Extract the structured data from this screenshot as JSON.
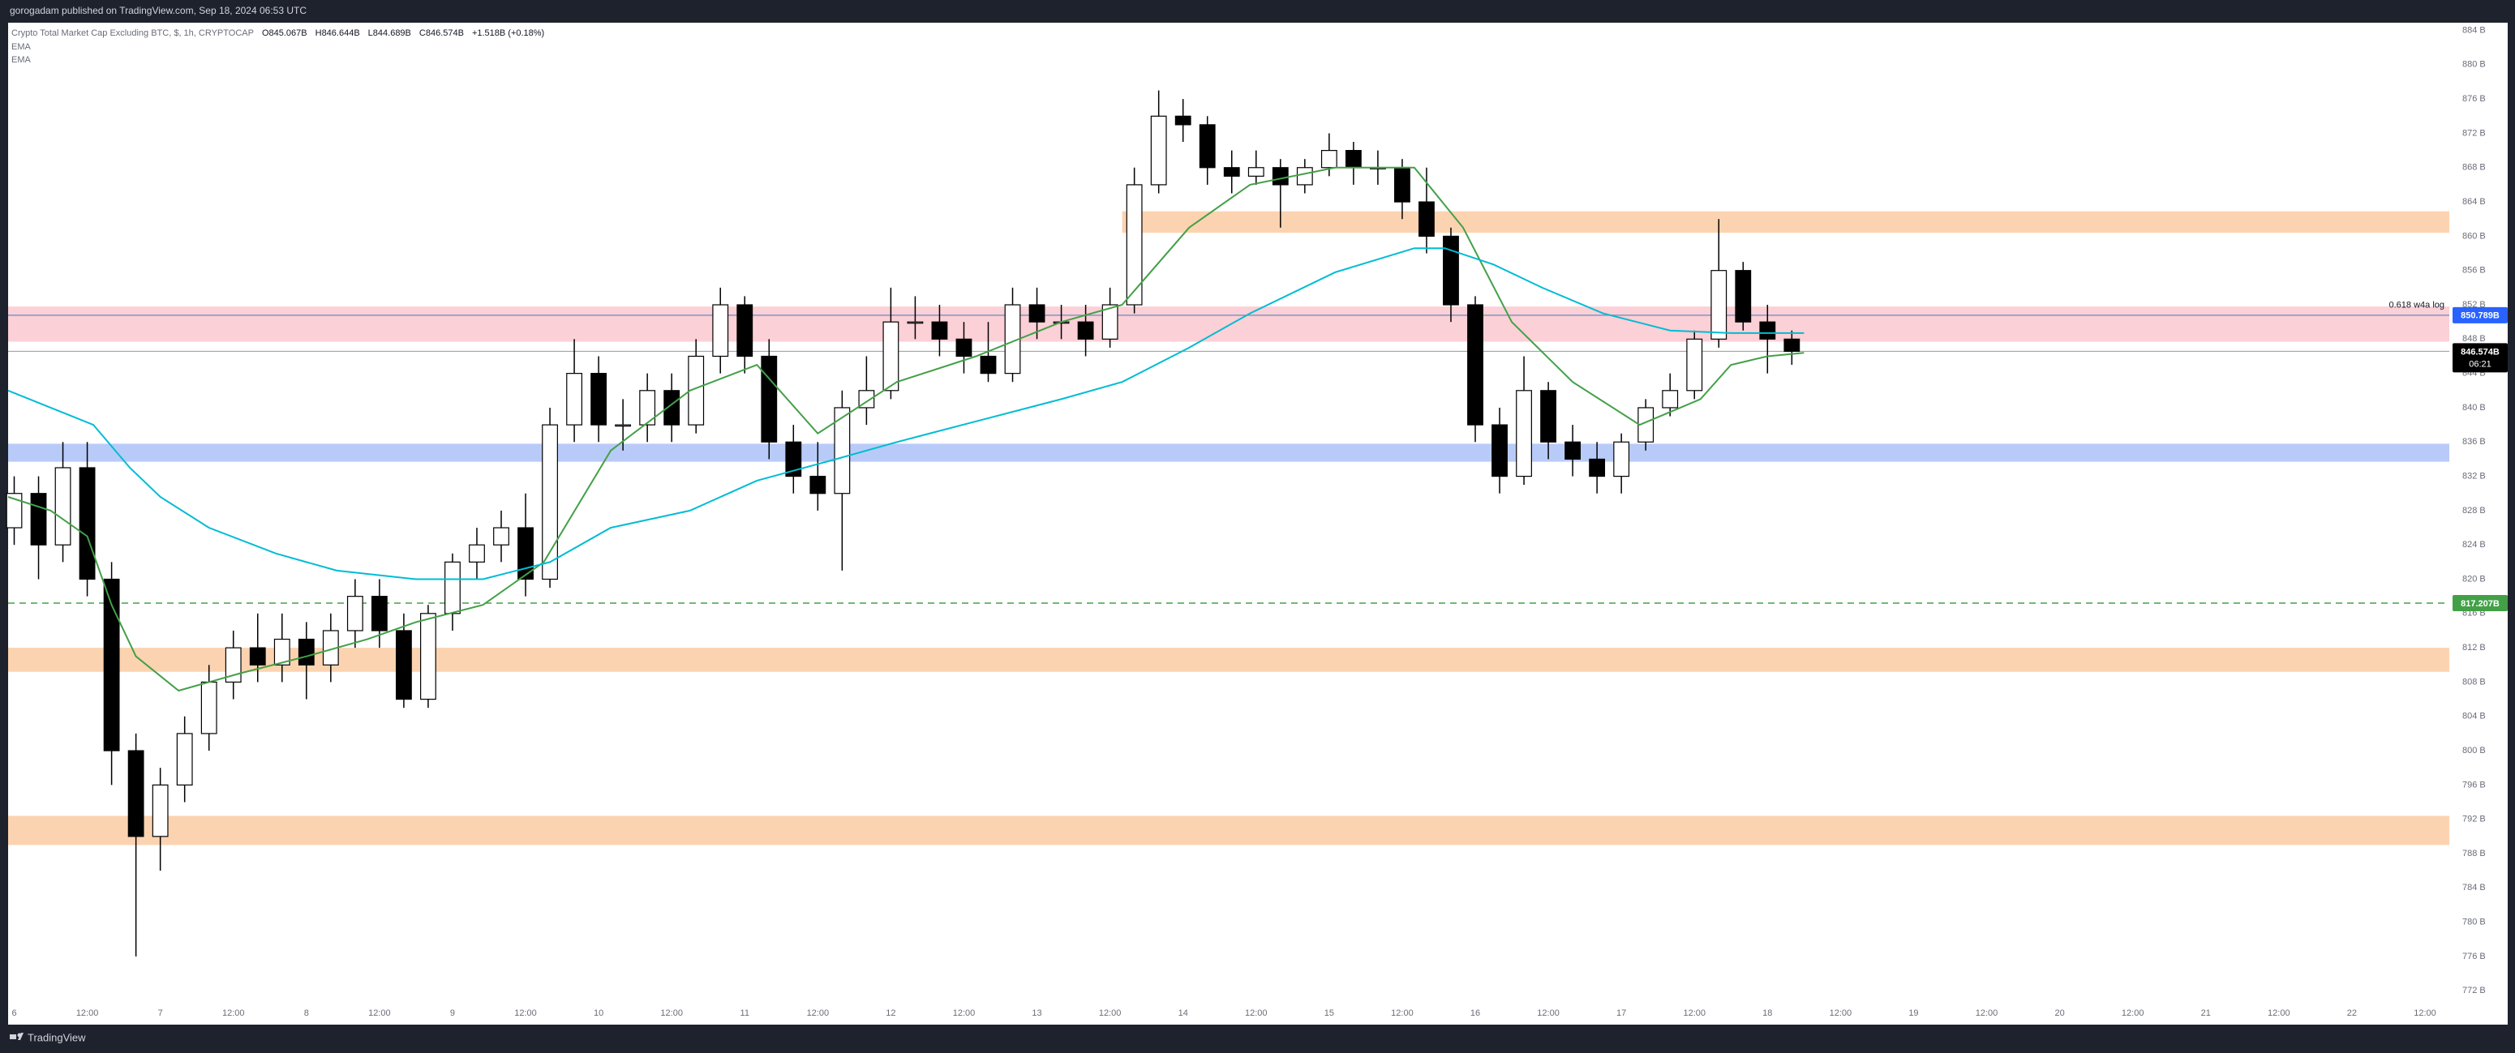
{
  "header": {
    "author_line": "gorogadam published on TradingView.com, Sep 18, 2024 06:53 UTC"
  },
  "footer": {
    "brand": "TradingView"
  },
  "chart_data": {
    "type": "candlestick",
    "legend": {
      "symbol": "Crypto Total Market Cap Excluding BTC, $, 1h, CRYPTOCAP",
      "open": "O845.067B",
      "high": "H846.644B",
      "low": "L844.689B",
      "close": "C846.574B",
      "change": "+1.518B (+0.18%)"
    },
    "xlim": [
      -1,
      400
    ],
    "ylim": [
      770.7,
      884.9
    ],
    "xticks": [
      {
        "value": 0,
        "label": "6"
      },
      {
        "value": 12,
        "label": "12:00"
      },
      {
        "value": 24,
        "label": "7"
      },
      {
        "value": 36,
        "label": "12:00"
      },
      {
        "value": 48,
        "label": "8"
      },
      {
        "value": 60,
        "label": "12:00"
      },
      {
        "value": 72,
        "label": "9"
      },
      {
        "value": 84,
        "label": "12:00"
      },
      {
        "value": 96,
        "label": "10"
      },
      {
        "value": 108,
        "label": "12:00"
      },
      {
        "value": 120,
        "label": "11"
      },
      {
        "value": 132,
        "label": "12:00"
      },
      {
        "value": 144,
        "label": "12"
      },
      {
        "value": 156,
        "label": "12:00"
      },
      {
        "value": 168,
        "label": "13"
      },
      {
        "value": 180,
        "label": "12:00"
      },
      {
        "value": 192,
        "label": "14"
      },
      {
        "value": 204,
        "label": "12:00"
      },
      {
        "value": 216,
        "label": "15"
      },
      {
        "value": 228,
        "label": "12:00"
      },
      {
        "value": 240,
        "label": "16"
      },
      {
        "value": 252,
        "label": "12:00"
      },
      {
        "value": 264,
        "label": "17"
      },
      {
        "value": 276,
        "label": "12:00"
      },
      {
        "value": 288,
        "label": "18"
      },
      {
        "value": 300,
        "label": "12:00"
      },
      {
        "value": 312,
        "label": "19"
      },
      {
        "value": 324,
        "label": "12:00"
      },
      {
        "value": 336,
        "label": "20"
      },
      {
        "value": 348,
        "label": "12:00"
      },
      {
        "value": 360,
        "label": "21"
      },
      {
        "value": 372,
        "label": "12:00"
      },
      {
        "value": 384,
        "label": "22"
      },
      {
        "value": 396,
        "label": "12:00"
      }
    ],
    "yticks": [
      {
        "value": 884,
        "label": "884 B"
      },
      {
        "value": 880,
        "label": "880 B"
      },
      {
        "value": 876,
        "label": "876 B"
      },
      {
        "value": 872,
        "label": "872 B"
      },
      {
        "value": 868,
        "label": "868 B"
      },
      {
        "value": 864,
        "label": "864 B"
      },
      {
        "value": 860,
        "label": "860 B"
      },
      {
        "value": 856,
        "label": "856 B"
      },
      {
        "value": 852,
        "label": "852 B"
      },
      {
        "value": 848,
        "label": "848 B"
      },
      {
        "value": 844,
        "label": "844 B"
      },
      {
        "value": 840,
        "label": "840 B"
      },
      {
        "value": 836,
        "label": "836 B"
      },
      {
        "value": 832,
        "label": "832 B"
      },
      {
        "value": 828,
        "label": "828 B"
      },
      {
        "value": 824,
        "label": "824 B"
      },
      {
        "value": 820,
        "label": "820 B"
      },
      {
        "value": 816,
        "label": "816 B"
      },
      {
        "value": 812,
        "label": "812 B"
      },
      {
        "value": 808,
        "label": "808 B"
      },
      {
        "value": 804,
        "label": "804 B"
      },
      {
        "value": 800,
        "label": "800 B"
      },
      {
        "value": 796,
        "label": "796 B"
      },
      {
        "value": 792,
        "label": "792 B"
      },
      {
        "value": 788,
        "label": "788 B"
      },
      {
        "value": 784,
        "label": "784 B"
      },
      {
        "value": 780,
        "label": "780 B"
      },
      {
        "value": 776,
        "label": "776 B"
      },
      {
        "value": 772,
        "label": "772 B"
      }
    ],
    "grid": false,
    "candles": {
      "up_color": "#ffffff",
      "down_color": "#000000",
      "x": [
        0,
        4,
        8,
        12,
        16,
        20,
        24,
        28,
        32,
        36,
        40,
        44,
        48,
        52,
        56,
        60,
        64,
        68,
        72,
        76,
        80,
        84,
        88,
        92,
        96,
        100,
        104,
        108,
        112,
        116,
        120,
        124,
        128,
        132,
        136,
        140,
        144,
        148,
        152,
        156,
        160,
        164,
        168,
        172,
        176,
        180,
        184,
        188,
        192,
        196,
        200,
        204,
        208,
        212,
        216,
        220,
        224,
        228,
        232,
        236,
        240,
        244,
        248,
        252,
        256,
        260,
        264,
        268,
        272,
        276,
        280,
        284,
        288,
        292
      ],
      "open": [
        826,
        830,
        824,
        833,
        820,
        800,
        790,
        796,
        802,
        808,
        812,
        810,
        813,
        810,
        814,
        818,
        814,
        806,
        816,
        822,
        824,
        826,
        820,
        838,
        844,
        838,
        838,
        842,
        838,
        846,
        852,
        846,
        836,
        832,
        830,
        840,
        842,
        850,
        850,
        848,
        846,
        844,
        852,
        850,
        850,
        848,
        852,
        866,
        874,
        873,
        868,
        867,
        868,
        866,
        868,
        870,
        868,
        868,
        864,
        860,
        852,
        838,
        832,
        842,
        836,
        834,
        832,
        836,
        840,
        842,
        848,
        856,
        850,
        848
      ],
      "high": [
        832,
        832,
        836,
        836,
        822,
        802,
        798,
        804,
        810,
        814,
        816,
        816,
        815,
        816,
        820,
        820,
        816,
        817,
        823,
        826,
        828,
        830,
        840,
        848,
        846,
        841,
        844,
        844,
        848,
        854,
        853,
        848,
        838,
        836,
        842,
        846,
        854,
        853,
        852,
        850,
        850,
        854,
        854,
        852,
        852,
        854,
        868,
        877,
        876,
        874,
        870,
        870,
        869,
        869,
        872,
        871,
        870,
        869,
        868,
        861,
        853,
        840,
        846,
        843,
        838,
        836,
        837,
        841,
        844,
        849,
        862,
        857,
        852,
        849
      ],
      "low": [
        824,
        820,
        822,
        818,
        796,
        776,
        786,
        794,
        800,
        806,
        808,
        808,
        806,
        808,
        812,
        812,
        805,
        805,
        814,
        820,
        822,
        818,
        819,
        836,
        836,
        835,
        836,
        836,
        837,
        844,
        844,
        834,
        830,
        828,
        821,
        838,
        841,
        848,
        846,
        844,
        843,
        843,
        848,
        848,
        846,
        847,
        851,
        865,
        871,
        866,
        865,
        866,
        861,
        865,
        867,
        866,
        866,
        862,
        858,
        850,
        836,
        830,
        831,
        834,
        832,
        830,
        830,
        835,
        839,
        841,
        847,
        849,
        844,
        845
      ],
      "close": [
        830,
        824,
        833,
        820,
        800,
        790,
        796,
        802,
        808,
        812,
        810,
        813,
        810,
        814,
        818,
        814,
        806,
        816,
        822,
        824,
        826,
        820,
        838,
        844,
        838,
        838,
        842,
        838,
        846,
        852,
        846,
        836,
        832,
        830,
        840,
        842,
        850,
        850,
        848,
        846,
        844,
        852,
        850,
        850,
        848,
        852,
        866,
        874,
        873,
        868,
        867,
        868,
        866,
        868,
        870,
        868,
        868,
        864,
        860,
        852,
        838,
        832,
        842,
        836,
        834,
        832,
        836,
        840,
        842,
        848,
        856,
        850,
        848,
        846.574
      ]
    },
    "series": [
      {
        "name": "EMA",
        "color": "#43a047",
        "x": [
          -1,
          6,
          12,
          16,
          20,
          27,
          37,
          48,
          58,
          66,
          77,
          87,
          98,
          111,
          122,
          132,
          145,
          158,
          172,
          182,
          193,
          203,
          217,
          230,
          238,
          246,
          256,
          267,
          277,
          282,
          288,
          294
        ],
        "values": [
          829.6,
          828,
          825,
          817,
          811,
          807,
          809,
          811,
          813,
          815,
          817,
          822,
          835,
          842,
          845,
          837,
          843,
          846,
          850,
          852,
          861,
          866,
          868,
          868,
          861,
          850,
          843,
          838,
          841,
          845,
          846,
          846.4
        ]
      },
      {
        "name": "EMA",
        "color": "#00bcd4",
        "x": [
          -1,
          6,
          13,
          19,
          24,
          32,
          43,
          53,
          66,
          77,
          88,
          98,
          111,
          122,
          135,
          145,
          159,
          172,
          182,
          193,
          203,
          217,
          230,
          235,
          243,
          251,
          261,
          272,
          282,
          294
        ],
        "values": [
          842,
          840,
          838,
          833,
          829.6,
          826,
          823,
          821,
          820,
          820,
          822,
          826,
          828,
          831.5,
          834,
          836,
          838.6,
          841,
          843,
          847,
          851,
          855.8,
          858.6,
          858.6,
          856.7,
          854,
          851,
          849,
          848.7,
          848.7
        ]
      }
    ],
    "zones": [
      {
        "low": 847.7,
        "high": 851.8,
        "color": "#fbd0d6"
      },
      {
        "low": 860.4,
        "high": 862.9,
        "color": "#fcd3b0",
        "x_start": 182
      },
      {
        "low": 833.7,
        "high": 835.8,
        "color": "#b8cbf8"
      },
      {
        "low": 809.2,
        "high": 812,
        "color": "#fcd3b0"
      },
      {
        "low": 789,
        "high": 792.4,
        "color": "#fcd3b0"
      }
    ],
    "levels": [
      {
        "value": 850.789,
        "value_label": "850.789B",
        "color": "#2962ff",
        "line_color": "#7f97c9",
        "text": "0.618  w4a log",
        "dashed": false
      },
      {
        "value": 817.207,
        "value_label": "817.207B",
        "color": "#43a047",
        "line_color": "#43a047",
        "dashed": true
      }
    ],
    "last_price": {
      "value": 846.574,
      "value_label": "846.574B",
      "countdown": "06:21",
      "color": "#000000"
    }
  }
}
